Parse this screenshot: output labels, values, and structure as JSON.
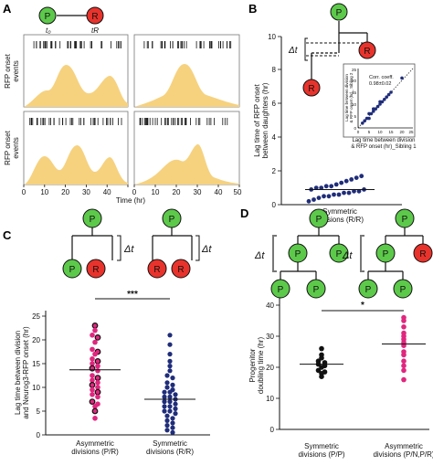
{
  "panels": {
    "a": "A",
    "b": "B",
    "c": "C",
    "d": "D"
  },
  "nodes": {
    "P": "P",
    "R": "R"
  },
  "a": {
    "t0": "t₀",
    "tR": "tR",
    "ylabel_line1": "RFP onset",
    "ylabel_line2": "events",
    "xlabel": "Time (hr)",
    "xticks": [
      "0",
      "10",
      "20",
      "30",
      "40",
      "50"
    ]
  },
  "b": {
    "ylabel_line1": "Lag time of RFP onset",
    "ylabel_line2": "between daughters (hr)",
    "yticks": [
      "0",
      "2",
      "4",
      "6",
      "8",
      "10"
    ],
    "xlabel_line1": "Symmetric",
    "xlabel_line2": "divisions (R/R)",
    "dt": "Δt",
    "inset": {
      "corr_line1": "Corr. coeff.",
      "corr_line2": "0.98±0.02",
      "xlabel_line1": "Lag time between division",
      "xlabel_line2": "& RFP onset (hr)_Sibling 1",
      "ylabel_line1": "Lag time between division",
      "ylabel_line2": "& RFP onset (hr)_ Sibling 2",
      "xticks": [
        "0",
        "5",
        "10",
        "15",
        "20",
        "25"
      ],
      "yticks": [
        "0",
        "5",
        "10",
        "15",
        "20",
        "25"
      ]
    }
  },
  "c": {
    "dt": "Δt",
    "ylabel_line1": "Lag time between division",
    "ylabel_line2": "and Neurog3-RFP onset (hr)",
    "yticks": [
      "0",
      "5",
      "10",
      "15",
      "20",
      "25"
    ],
    "significance": "***",
    "groups": [
      {
        "line1": "Asymmetric",
        "line2": "divisions (P/R)"
      },
      {
        "line1": "Symmetric",
        "line2": "divisions (R/R)"
      }
    ]
  },
  "d": {
    "dt": "Δt",
    "ylabel_line1": "Progenitor",
    "ylabel_line2": "doubling time (hr)",
    "yticks": [
      "0",
      "10",
      "20",
      "30",
      "40"
    ],
    "significance": "*",
    "groups": [
      {
        "line1": "Symmetric",
        "line2": "divisions (P/P)"
      },
      {
        "line1": "Asymmetric",
        "line2": "divisions (P/N,P/R)"
      }
    ]
  },
  "colors": {
    "progenitor": "#5cc94a",
    "rfp": "#e8332c",
    "density": "#f6d27f",
    "navy": "#1f2d7a",
    "magenta": "#e0267e",
    "black": "#111111"
  },
  "chart_data": [
    {
      "type": "scatter",
      "panel": "B",
      "ylabel": "Lag time of RFP onset between daughters (hr)",
      "ylim": [
        0,
        10
      ],
      "categories": [
        "Symmetric divisions (R/R)"
      ],
      "values": [
        0.2,
        0.3,
        0.4,
        0.5,
        0.5,
        0.6,
        0.6,
        0.7,
        0.7,
        0.8,
        0.8,
        0.9,
        0.9,
        1.0,
        1.0,
        1.1,
        1.1,
        1.2,
        1.3,
        1.4,
        1.5,
        1.6,
        1.7
      ],
      "mean": 0.9
    },
    {
      "type": "scatter",
      "panel": "B inset",
      "xlabel": "Lag time between division & RFP onset (hr)_Sibling 1",
      "ylabel": "Lag time between division & RFP onset (hr)_ Sibling 2",
      "xlim": [
        0,
        25
      ],
      "ylim": [
        0,
        25
      ],
      "x": [
        2,
        3,
        4,
        5,
        5,
        6,
        7,
        7,
        8,
        9,
        10,
        10,
        11,
        12,
        13,
        14,
        15,
        20
      ],
      "y": [
        2,
        3,
        4,
        4,
        6,
        6,
        7,
        8,
        8,
        9,
        10,
        11,
        11,
        12,
        13,
        14,
        15,
        21
      ]
    },
    {
      "type": "scatter",
      "panel": "C",
      "ylabel": "Lag time between division and Neurog3-RFP onset (hr)",
      "ylim": [
        0,
        25
      ],
      "categories": [
        "Asymmetric divisions (P/R)",
        "Symmetric divisions (R/R)"
      ],
      "series": [
        {
          "values": [
            23.0,
            22.0,
            21.0,
            20.5,
            19.5,
            18.0,
            17.5,
            17.0,
            16.0,
            15.5,
            15.0,
            14.5,
            14.0,
            13.5,
            12.5,
            12.0,
            11.5,
            11.0,
            10.5,
            10.0,
            9.5,
            9.0,
            8.5,
            8.0,
            7.0,
            6.5,
            6.0,
            5.0,
            3.5
          ],
          "mean": 13.7
        },
        {
          "values": [
            21.0,
            19.0,
            17.0,
            15.5,
            14.5,
            13.5,
            12.5,
            12.0,
            11.0,
            10.5,
            10.0,
            9.5,
            9.0,
            9.0,
            8.5,
            8.0,
            8.0,
            7.5,
            7.0,
            7.0,
            6.5,
            6.0,
            6.0,
            5.5,
            5.0,
            5.0,
            4.5,
            4.0,
            3.5,
            3.0,
            2.5,
            2.0,
            1.5,
            1.0,
            0.5
          ],
          "mean": 7.5
        }
      ]
    },
    {
      "type": "scatter",
      "panel": "D",
      "ylabel": "Progenitor doubling time (hr)",
      "ylim": [
        0,
        40
      ],
      "categories": [
        "Symmetric divisions (P/P)",
        "Asymmetric divisions (P/N,P/R)"
      ],
      "series": [
        {
          "values": [
            26.0,
            24.0,
            23.0,
            22.0,
            21.5,
            21.0,
            20.5,
            20.0,
            19.0,
            18.5,
            18.0,
            17.0
          ],
          "mean": 21.0
        },
        {
          "values": [
            36.0,
            35.0,
            33.0,
            31.0,
            30.0,
            29.0,
            28.0,
            27.0,
            25.0,
            24.0,
            22.0,
            20.5,
            19.0,
            16.0
          ],
          "mean": 27.5
        }
      ]
    }
  ]
}
